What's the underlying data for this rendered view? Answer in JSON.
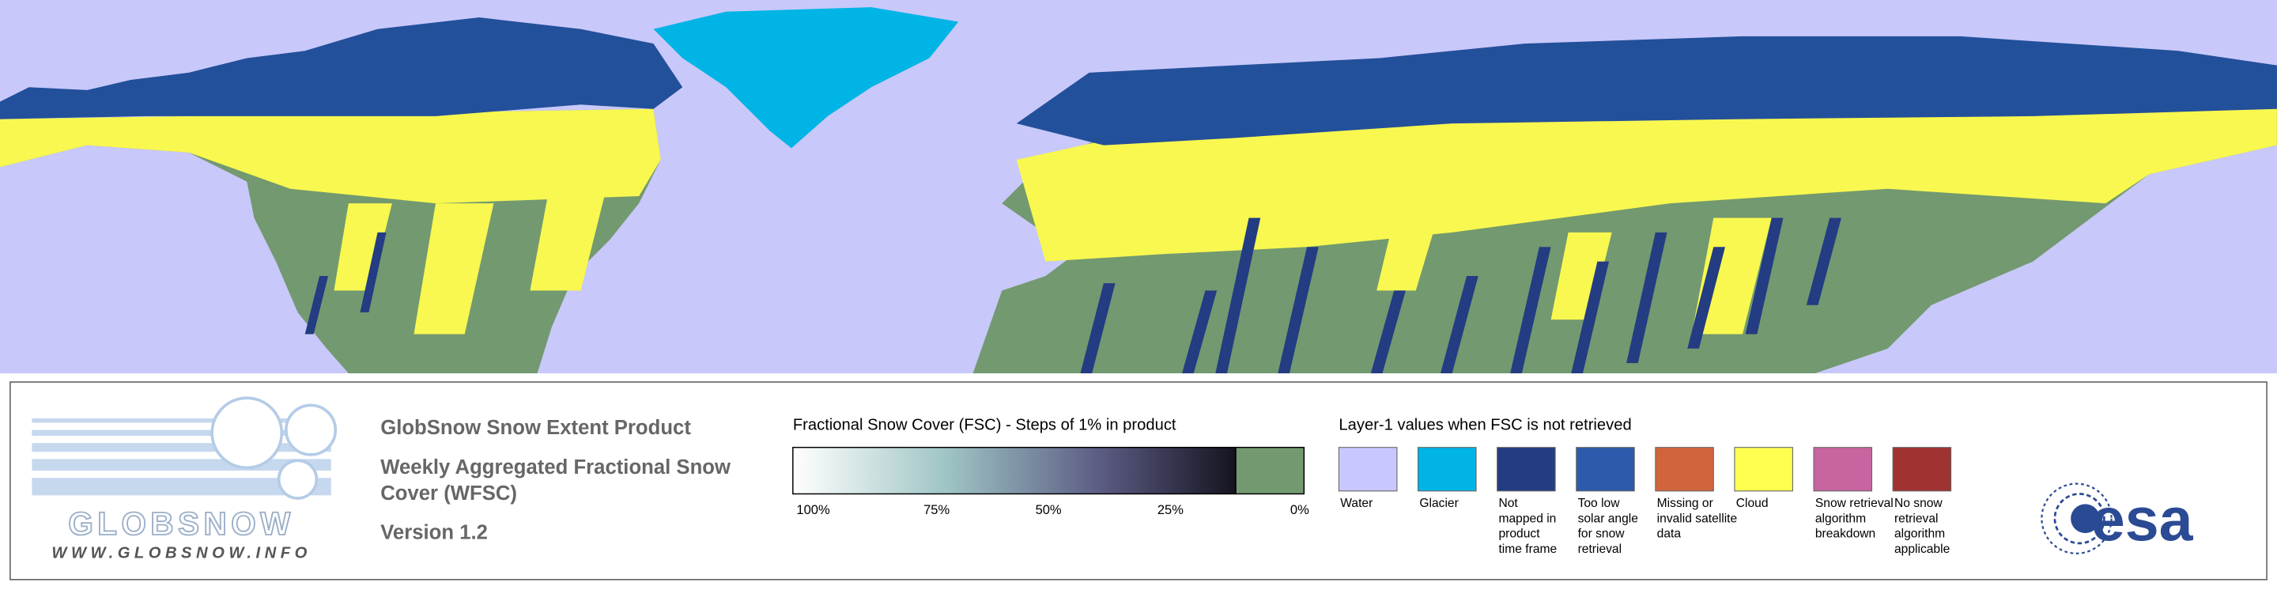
{
  "logo": {
    "name": "GLOBSNOW",
    "url": "WWW.GLOBSNOW.INFO"
  },
  "product": {
    "title": "GlobSnow Snow Extent Product",
    "subtitle_lines": [
      "Weekly Aggregated Fractional Snow",
      "Cover (WFSC)"
    ],
    "version": "Version 1.2"
  },
  "fsc_legend": {
    "title": "Fractional Snow Cover (FSC) - Steps of 1% in product",
    "labels": [
      "100%",
      "75%",
      "50%",
      "25%",
      "0%"
    ],
    "snow_free_color": "#739970"
  },
  "layer1_legend": {
    "title": "Layer-1 values when FSC is not retrieved",
    "items": [
      {
        "label_lines": [
          "Water"
        ],
        "color": "#c8c8ff"
      },
      {
        "label_lines": [
          "Glacier"
        ],
        "color": "#00b4e6"
      },
      {
        "label_lines": [
          "Not",
          "mapped in",
          "product",
          "time frame"
        ],
        "color": "#233c82"
      },
      {
        "label_lines": [
          "Too low",
          "solar angle",
          "for snow",
          "retrieval"
        ],
        "color": "#2d5aaa"
      },
      {
        "label_lines": [
          "Missing or",
          "invalid satellite",
          "data"
        ],
        "color": "#d2643c"
      },
      {
        "label_lines": [
          "Cloud"
        ],
        "color": "#ffff50"
      },
      {
        "label_lines": [
          "Snow retrieval",
          "algorithm",
          "breakdown"
        ],
        "color": "#c864a0"
      },
      {
        "label_lines": [
          "No snow",
          "retrieval",
          "algorithm",
          "applicable"
        ],
        "color": "#a03232"
      }
    ]
  },
  "agency": "esa"
}
